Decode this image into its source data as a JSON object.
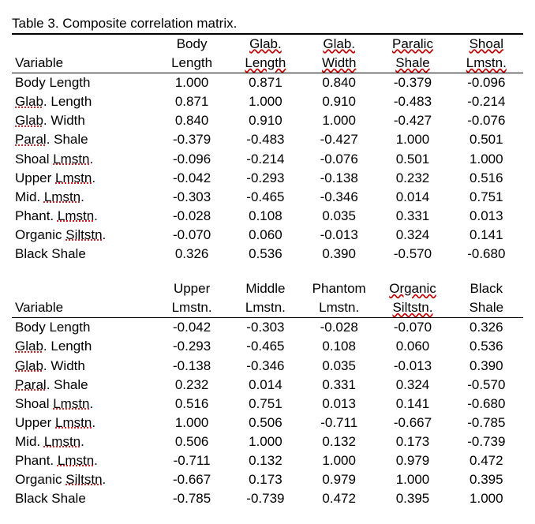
{
  "title": "Table 3. Composite correlation matrix.",
  "variable_label": "Variable",
  "variables": [
    "Body Length",
    "Glab. Length",
    "Glab. Width",
    "Paral. Shale",
    "Shoal Lmstn.",
    "Upper Lmstn.",
    "Mid. Lmstn.",
    "Phant. Lmstn.",
    "Organic Siltstn.",
    "Black Shale"
  ],
  "block1": {
    "headers": [
      [
        "Body",
        "Length"
      ],
      [
        "Glab.",
        "Length"
      ],
      [
        "Glab.",
        "Width"
      ],
      [
        "Paralic",
        "Shale"
      ],
      [
        "Shoal",
        "Lmstn."
      ]
    ],
    "rows": [
      [
        "1.000",
        "0.871",
        "0.840",
        "-0.379",
        "-0.096"
      ],
      [
        "0.871",
        "1.000",
        "0.910",
        "-0.483",
        "-0.214"
      ],
      [
        "0.840",
        "0.910",
        "1.000",
        "-0.427",
        "-0.076"
      ],
      [
        "-0.379",
        "-0.483",
        "-0.427",
        "1.000",
        "0.501"
      ],
      [
        "-0.096",
        "-0.214",
        "-0.076",
        "0.501",
        "1.000"
      ],
      [
        "-0.042",
        "-0.293",
        "-0.138",
        "0.232",
        "0.516"
      ],
      [
        "-0.303",
        "-0.465",
        "-0.346",
        "0.014",
        "0.751"
      ],
      [
        "-0.028",
        "0.108",
        "0.035",
        "0.331",
        "0.013"
      ],
      [
        "-0.070",
        "0.060",
        "-0.013",
        "0.324",
        "0.141"
      ],
      [
        "0.326",
        "0.536",
        "0.390",
        "-0.570",
        "-0.680"
      ]
    ]
  },
  "block2": {
    "headers": [
      [
        "Upper",
        "Lmstn."
      ],
      [
        "Middle",
        "Lmstn."
      ],
      [
        "Phantom",
        "Lmstn."
      ],
      [
        "Organic",
        "Siltstn."
      ],
      [
        "Black",
        "Shale"
      ]
    ],
    "rows": [
      [
        "-0.042",
        "-0.303",
        "-0.028",
        "-0.070",
        "0.326"
      ],
      [
        "-0.293",
        "-0.465",
        "0.108",
        "0.060",
        "0.536"
      ],
      [
        "-0.138",
        "-0.346",
        "0.035",
        "-0.013",
        "0.390"
      ],
      [
        "0.232",
        "0.014",
        "0.331",
        "0.324",
        "-0.570"
      ],
      [
        "0.516",
        "0.751",
        "0.013",
        "0.141",
        "-0.680"
      ],
      [
        "1.000",
        "0.506",
        "-0.711",
        "-0.667",
        "-0.785"
      ],
      [
        "0.506",
        "1.000",
        "0.132",
        "0.173",
        "-0.739"
      ],
      [
        "-0.711",
        "0.132",
        "1.000",
        "0.979",
        "0.472"
      ],
      [
        "-0.667",
        "0.173",
        "0.979",
        "1.000",
        "0.395"
      ],
      [
        "-0.785",
        "-0.739",
        "0.472",
        "0.395",
        "1.000"
      ]
    ]
  },
  "underline_headers": {
    "block1": [
      1,
      2,
      3,
      4
    ],
    "block2": [
      3
    ]
  },
  "row_label_flags": {
    "Glab. Length": "Glab",
    "Glab. Width": "Glab",
    "Paral. Shale": "Paral",
    "Shoal Lmstn.": "Lmstn",
    "Upper Lmstn.": "Lmstn",
    "Mid. Lmstn.": "Lmstn",
    "Phant. Lmstn.": "Lmstn",
    "Organic Siltstn.": "Siltstn"
  },
  "styling": {
    "font_family": "Arial",
    "font_size_pt": 13,
    "text_color": "#000000",
    "bg_color": "#ffffff",
    "rule_color": "#000000",
    "wavy_underline_color": "#c00000",
    "col_widths_pct": {
      "label": 28,
      "data": 14.4
    },
    "top_rule": "double",
    "header_bottom_rule": "single"
  }
}
